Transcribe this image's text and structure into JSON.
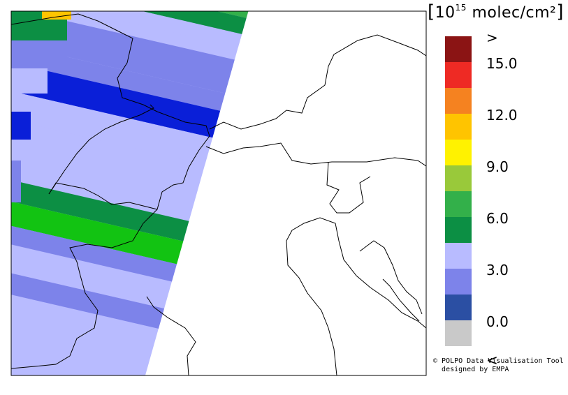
{
  "map": {
    "units_base": "10",
    "units_exp": "15",
    "units_text": "molec/cm²",
    "credit_line1": "© POLPO Data Visualisation Tool",
    "credit_line2": "designed by EMPA"
  },
  "legend": {
    "colors": [
      "#c9c9c9",
      "#2b4fa3",
      "#7d83ea",
      "#b8bbff",
      "#0c8f44",
      "#33b04a",
      "#99c93a",
      "#fff200",
      "#ffc400",
      "#f58220",
      "#ee2a24",
      "#8b1414"
    ],
    "labels": [
      {
        "text": "<",
        "slot": 0
      },
      {
        "text": "0.0",
        "slot": 1
      },
      {
        "text": "3.0",
        "slot": 3
      },
      {
        "text": "6.0",
        "slot": 5
      },
      {
        "text": "9.0",
        "slot": 7
      },
      {
        "text": "12.0",
        "slot": 9
      },
      {
        "text": "15.0",
        "slot": 11
      },
      {
        "text": ">",
        "slot": 12
      }
    ]
  }
}
